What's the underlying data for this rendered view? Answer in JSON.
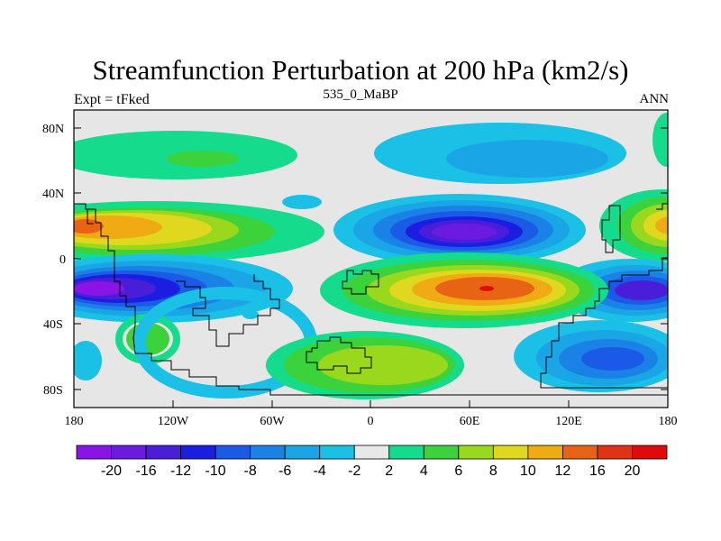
{
  "title": "Streamfunction Perturbation at 200 hPa (km2/s)",
  "subtitle": "535_0_MaBP",
  "left_string": "Expt = tFked",
  "right_string": "ANN",
  "axes": {
    "y_ticks": [
      "80N",
      "40N",
      "0",
      "40S",
      "80S"
    ],
    "x_ticks": [
      "180",
      "120W",
      "60W",
      "0",
      "60E",
      "120E",
      "180"
    ]
  },
  "colorbar": {
    "labels": [
      "-20",
      "-16",
      "-12",
      "-10",
      "-8",
      "-6",
      "-4",
      "-2",
      "2",
      "4",
      "6",
      "8",
      "10",
      "12",
      "16",
      "20"
    ],
    "colors": [
      "#8a14e6",
      "#6b1ae0",
      "#4a1ed8",
      "#1a1ee0",
      "#1a5ae6",
      "#1a82e6",
      "#1aa6e6",
      "#1ac0e6",
      "#e8e8e8",
      "#14dc8c",
      "#3cd23c",
      "#9ad81e",
      "#e0d81e",
      "#f0aa14",
      "#e86414",
      "#e03214",
      "#e00a0a"
    ]
  },
  "colors": {
    "background": "#e6e6e6",
    "frame": "#000000"
  }
}
